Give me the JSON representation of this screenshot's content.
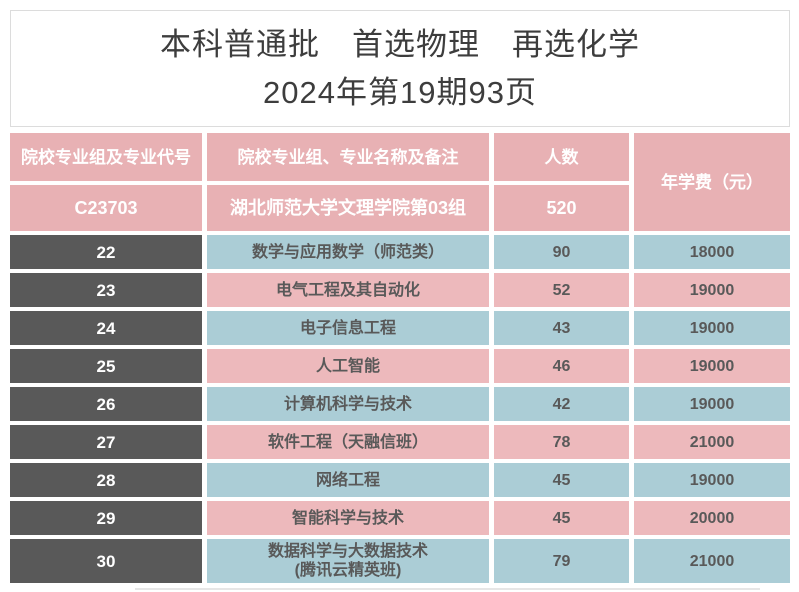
{
  "title": {
    "line1": "本科普通批　首选物理　再选化学",
    "line2": "2024年第19期93页"
  },
  "table": {
    "headers": {
      "col_code": "院校专业组及专业代号",
      "col_name": "院校专业组、专业名称及备注",
      "col_count": "人数",
      "col_fee": "年学费（元）"
    },
    "group": {
      "code": "C23703",
      "name": "湖北师范大学文理学院第03组",
      "count": "520"
    },
    "rows": [
      {
        "code": "22",
        "name": "数学与应用数学（师范类）",
        "count": "90",
        "fee": "18000"
      },
      {
        "code": "23",
        "name": "电气工程及其自动化",
        "count": "52",
        "fee": "19000"
      },
      {
        "code": "24",
        "name": "电子信息工程",
        "count": "43",
        "fee": "19000"
      },
      {
        "code": "25",
        "name": "人工智能",
        "count": "46",
        "fee": "19000"
      },
      {
        "code": "26",
        "name": "计算机科学与技术",
        "count": "42",
        "fee": "19000"
      },
      {
        "code": "27",
        "name": "软件工程（天融信班）",
        "count": "78",
        "fee": "21000"
      },
      {
        "code": "28",
        "name": "网络工程",
        "count": "45",
        "fee": "19000"
      },
      {
        "code": "29",
        "name": "智能科学与技术",
        "count": "45",
        "fee": "20000"
      },
      {
        "code": "30",
        "name": "数据科学与大数据技术\n(腾讯云精英班)",
        "count": "79",
        "fee": "21000"
      }
    ]
  },
  "colors": {
    "header_pink": "#e8b1b4",
    "row_pink": "#edb9bc",
    "row_blue": "#abcdd6",
    "code_gray": "#595959",
    "text_dark": "#595959",
    "text_title": "#3d3d3d",
    "border_light": "#dcdcdc"
  }
}
